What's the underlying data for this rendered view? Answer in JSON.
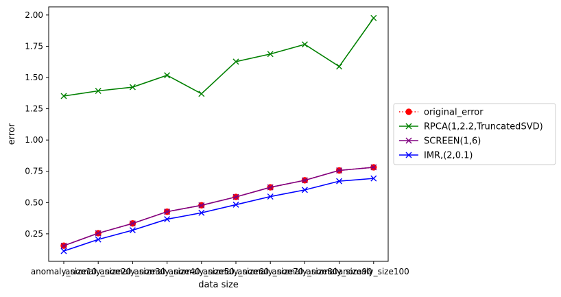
{
  "chart_data": {
    "type": "line",
    "title": "",
    "xlabel": "data size",
    "ylabel": "error",
    "categories": [
      "anomaly_size10",
      "anomaly_size20",
      "anomaly_size30",
      "anomaly_size40",
      "anomaly_size50",
      "anomaly_size60",
      "anomaly_size70",
      "anomaly_size80",
      "anomaly_size90",
      "anomaly_size100"
    ],
    "ylim": [
      0.03,
      2.065
    ],
    "yticks": [
      "0.25",
      "0.50",
      "0.75",
      "1.00",
      "1.25",
      "1.50",
      "1.75",
      "2.00"
    ],
    "ytick_values": [
      0.25,
      0.5,
      0.75,
      1.0,
      1.25,
      1.5,
      1.75,
      2.0
    ],
    "grid": false,
    "legend_position": "center-left outside right",
    "series": [
      {
        "name": "original_error",
        "color": "#ff0000",
        "line_style": "dotted",
        "marker": "circle",
        "values": [
          0.155,
          0.255,
          0.333,
          0.427,
          0.478,
          0.545,
          0.622,
          0.678,
          0.757,
          0.782
        ]
      },
      {
        "name": "RPCA(1,2.2,TruncatedSVD)",
        "color": "#008000",
        "line_style": "solid",
        "marker": "x",
        "values": [
          1.352,
          1.393,
          1.423,
          1.518,
          1.37,
          1.627,
          1.688,
          1.765,
          1.588,
          1.976
        ]
      },
      {
        "name": "SCREEN(1,6)",
        "color": "#800080",
        "line_style": "solid",
        "marker": "x",
        "values": [
          0.155,
          0.255,
          0.333,
          0.427,
          0.478,
          0.545,
          0.622,
          0.678,
          0.757,
          0.782
        ]
      },
      {
        "name": "IMR,(2,0.1)",
        "color": "#0000ff",
        "line_style": "solid",
        "marker": "x",
        "values": [
          0.112,
          0.205,
          0.279,
          0.367,
          0.418,
          0.483,
          0.548,
          0.601,
          0.671,
          0.693
        ]
      }
    ]
  }
}
